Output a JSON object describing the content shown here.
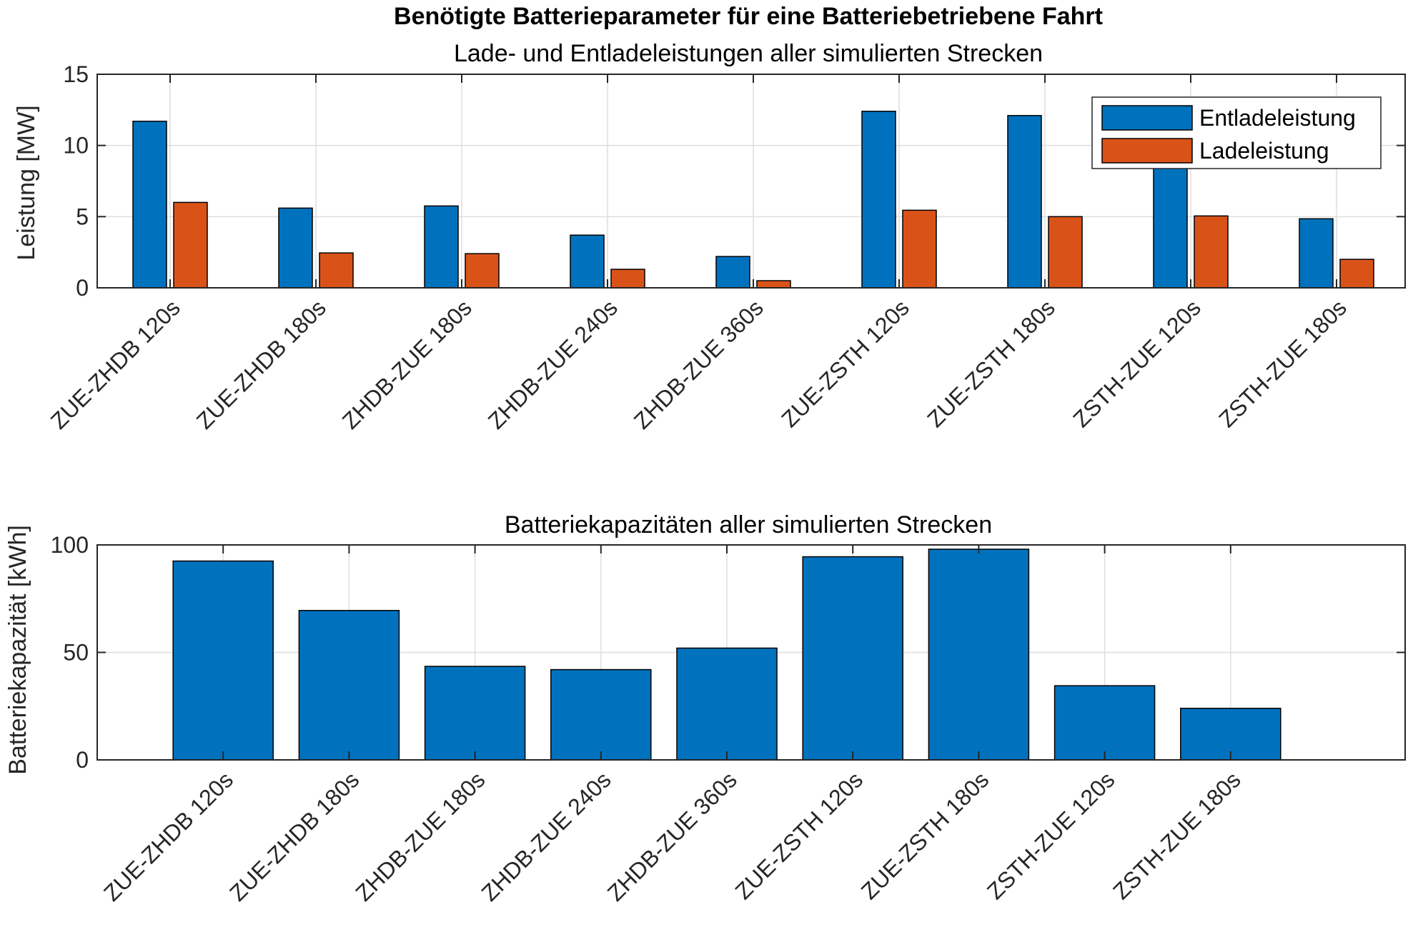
{
  "figure_title": "Benötigte Batterieparameter für eine Batteriebetriebene Fahrt",
  "chart_data": [
    {
      "type": "bar",
      "title": "Lade- und Entladeleistungen aller simulierten Strecken",
      "xlabel": "",
      "ylabel": "Leistung [MW]",
      "ylim": [
        0,
        15
      ],
      "yticks": [
        0,
        5,
        10,
        15
      ],
      "grid": true,
      "legend_position": "top-right",
      "categories": [
        "ZUE-ZHDB 120s",
        "ZUE-ZHDB 180s",
        "ZHDB-ZUE 180s",
        "ZHDB-ZUE 240s",
        "ZHDB-ZUE 360s",
        "ZUE-ZSTH 120s",
        "ZUE-ZSTH 180s",
        "ZSTH-ZUE 120s",
        "ZSTH-ZUE 180s"
      ],
      "series": [
        {
          "name": "Entladeleistung",
          "color": "#0072BD",
          "values": [
            11.7,
            5.6,
            5.75,
            3.7,
            2.2,
            12.4,
            12.1,
            8.6,
            4.85
          ]
        },
        {
          "name": "Ladeleistung",
          "color": "#D95319",
          "values": [
            6.0,
            2.45,
            2.4,
            1.3,
            0.5,
            5.45,
            5.0,
            5.05,
            2.0
          ]
        }
      ]
    },
    {
      "type": "bar",
      "title": "Batteriekapazitäten aller simulierten Strecken",
      "xlabel": "",
      "ylabel": "Batteriekapazität [kWh]",
      "ylim": [
        0,
        100
      ],
      "yticks": [
        0,
        50,
        100
      ],
      "grid": true,
      "categories": [
        "ZUE-ZHDB 120s",
        "ZUE-ZHDB 180s",
        "ZHDB-ZUE 180s",
        "ZHDB-ZUE 240s",
        "ZHDB-ZUE 360s",
        "ZUE-ZSTH 120s",
        "ZUE-ZSTH 180s",
        "ZSTH-ZUE 120s",
        "ZSTH-ZUE 180s"
      ],
      "series": [
        {
          "color": "#0072BD",
          "values": [
            92.5,
            69.5,
            43.5,
            42,
            52,
            94.5,
            98,
            34.5,
            24
          ]
        }
      ]
    }
  ]
}
